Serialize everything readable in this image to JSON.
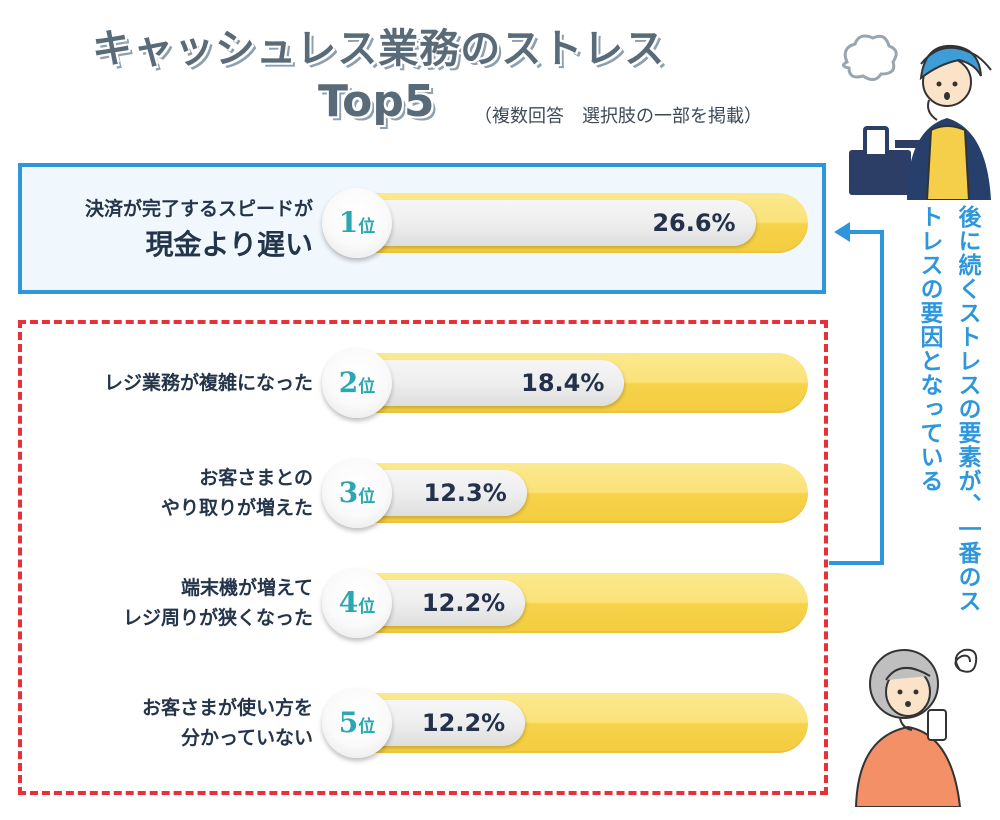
{
  "title": {
    "line1": "キャッシュレス業務のストレス",
    "line2": "Top5",
    "note": "（複数回答　選択肢の一部を掲載）"
  },
  "side_note": "後に続くストレスの要素が、一番のストレスの要因となっている",
  "colors": {
    "accent_blue": "#2e97dc",
    "accent_red": "#e8303b",
    "track_yellow": "#f9dc5c",
    "rank_teal": "#2aa7b0"
  },
  "chart_data": {
    "type": "bar",
    "orientation": "horizontal",
    "xlim": [
      0,
      50
    ],
    "items": [
      {
        "rank": "1",
        "rank_unit": "位",
        "label_line1": "決済が完了するスピードが",
        "label_line2": "現金より遅い",
        "value": 26.6,
        "value_label": "26.6%"
      },
      {
        "rank": "2",
        "rank_unit": "位",
        "label_line1": "レジ業務が複雑になった",
        "label_line2": "",
        "value": 18.4,
        "value_label": "18.4%"
      },
      {
        "rank": "3",
        "rank_unit": "位",
        "label_line1": "お客さまとの",
        "label_line2": "やり取りが増えた",
        "value": 12.3,
        "value_label": "12.3%"
      },
      {
        "rank": "4",
        "rank_unit": "位",
        "label_line1": "端末機が増えて",
        "label_line2": "レジ周りが狭くなった",
        "value": 12.2,
        "value_label": "12.2%"
      },
      {
        "rank": "5",
        "rank_unit": "位",
        "label_line1": "お客さまが使い方を",
        "label_line2": "分かっていない",
        "value": 12.2,
        "value_label": "12.2%"
      }
    ]
  }
}
